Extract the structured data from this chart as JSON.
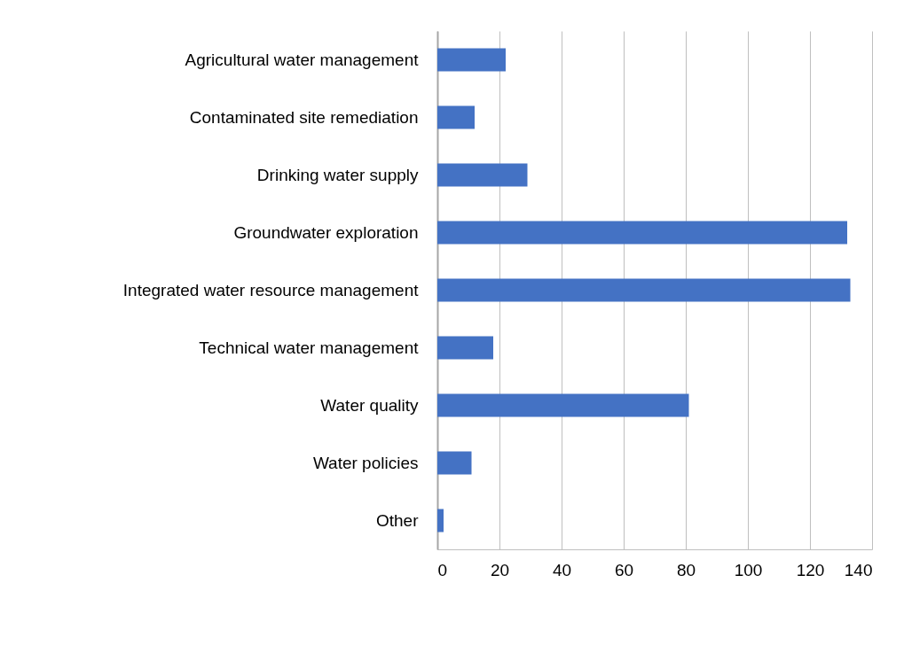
{
  "chart_data": {
    "type": "bar",
    "orientation": "horizontal",
    "categories": [
      "Agricultural water management",
      "Contaminated site remediation",
      "Drinking water supply",
      "Groundwater exploration",
      "Integrated water resource management",
      "Technical water management",
      "Water quality",
      "Water policies",
      "Other"
    ],
    "values": [
      22,
      12,
      29,
      132,
      133,
      18,
      81,
      11,
      2
    ],
    "color": "#4472c4",
    "xlim": [
      0,
      140
    ],
    "xticks": [
      0,
      20,
      40,
      60,
      80,
      100,
      120,
      140
    ],
    "grid": "x"
  }
}
